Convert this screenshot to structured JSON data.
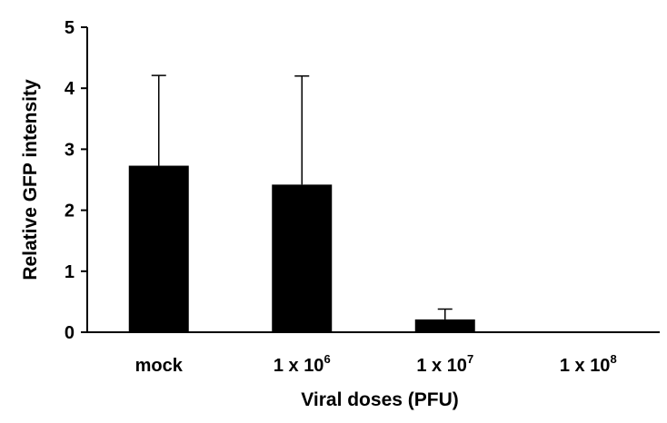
{
  "chart_data": {
    "type": "bar",
    "title": "",
    "xlabel": "Viral doses (PFU)",
    "ylabel": "Relative GFP intensity",
    "ylim": [
      0,
      5
    ],
    "yticks": [
      0,
      1,
      2,
      3,
      4,
      5
    ],
    "grid": false,
    "categories": [
      {
        "base": "mock",
        "sup": ""
      },
      {
        "base": "1 x 10",
        "sup": "6"
      },
      {
        "base": "1 x 10",
        "sup": "7"
      },
      {
        "base": "1 x 10",
        "sup": "8"
      }
    ],
    "values": [
      2.73,
      2.42,
      0.21,
      0.0
    ],
    "error_upper": [
      1.48,
      1.78,
      0.17,
      0.0
    ],
    "bar_color": "#000000"
  }
}
